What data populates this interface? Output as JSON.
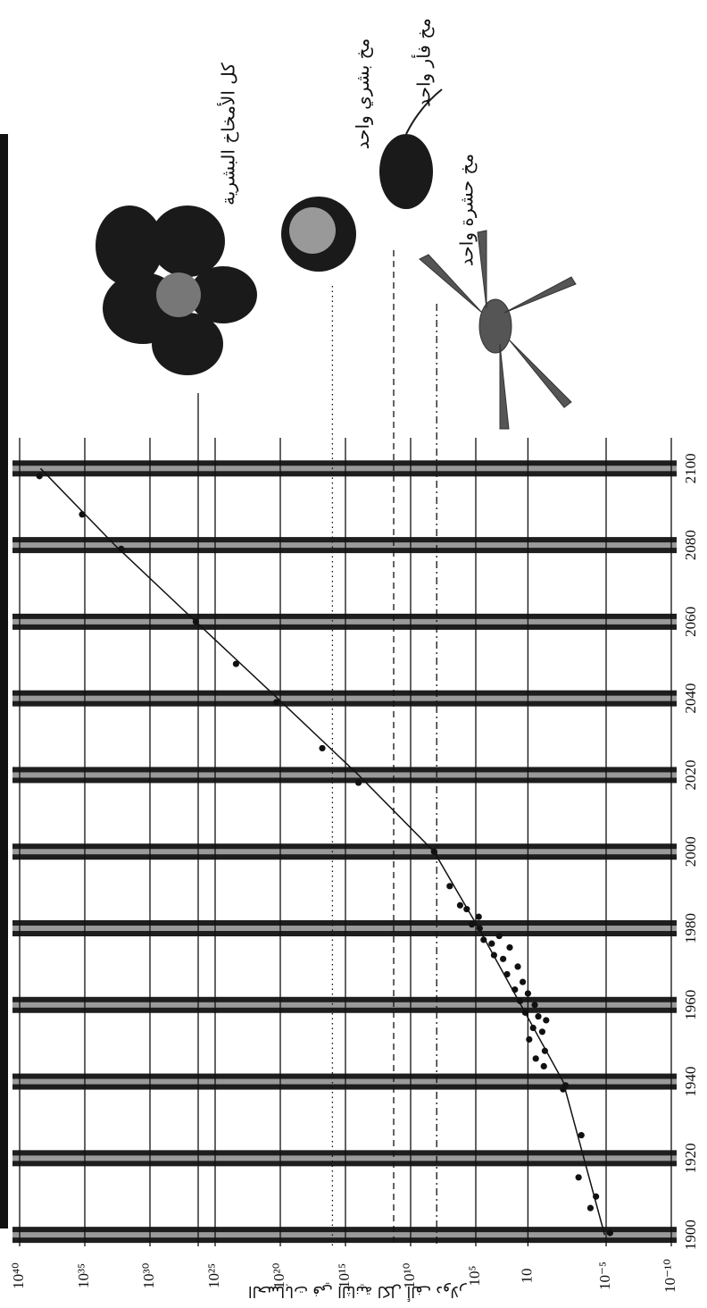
{
  "chart_data": {
    "type": "scatter",
    "ylabel": "الحسابات في الثانية لكل ألف دولار",
    "log_scale": true,
    "xlim": [
      1897,
      2108
    ],
    "xticks": [
      1900,
      1920,
      1940,
      1960,
      1980,
      2000,
      2020,
      2040,
      2060,
      2080,
      2100
    ],
    "ylim": [
      1e-10,
      1e+40
    ],
    "yticks": [
      {
        "value": 1e-10,
        "label": "10⁻¹⁰"
      },
      {
        "value": 1e-05,
        "label": "10⁻⁵"
      },
      10,
      {
        "value": 100000,
        "label": "10⁵"
      },
      {
        "value": 10000000000.0,
        "label": "10¹⁰"
      },
      {
        "value": 1000000000000000.0,
        "label": "10¹⁵"
      },
      {
        "value": 1e+20,
        "label": "10²⁰"
      },
      {
        "value": 1e+25,
        "label": "10²⁵"
      },
      {
        "value": 1e+30,
        "label": "10³⁰"
      },
      {
        "value": 1e+35,
        "label": "10³⁵"
      },
      {
        "value": 1e+40,
        "label": "10⁴⁰"
      }
    ],
    "series": [
      {
        "type": "scatter",
        "color": "#111111",
        "x": [
          1900.5,
          1907,
          1910,
          1915,
          1926,
          1938,
          1939,
          1944,
          1946,
          1948,
          1951,
          1953,
          1954,
          1956,
          1957,
          1958,
          1960,
          1961,
          1963,
          1964,
          1966,
          1968,
          1970,
          1972,
          1973,
          1975,
          1976,
          1977,
          1978,
          1980,
          1981,
          1983,
          1985,
          1986,
          1991,
          2000,
          2018,
          2027,
          2039,
          2049,
          2060,
          2079,
          2088,
          2098
        ],
        "values": [
          5e-06,
          0.00016,
          6e-05,
          0.0013,
          0.0008,
          0.02,
          0.013,
          0.6,
          2.5,
          0.5,
          8,
          0.8,
          4,
          0.4,
          1.6,
          16,
          3,
          40,
          10,
          100,
          25,
          400,
          60,
          800,
          4000,
          250,
          6000,
          25000,
          1600,
          50000,
          200000,
          60000,
          500000,
          1600000,
          10000000.0,
          160000000.0,
          100000000000000.0,
          6e+16,
          2e+20,
          2.5e+23,
          3e+26,
          1.6e+32,
          1.6e+35,
          3e+38
        ]
      },
      {
        "type": "line",
        "color": "#111111",
        "x": [
          1900,
          1940,
          1980,
          2000,
          2020,
          2040,
          2060,
          2080,
          2100
        ],
        "values": [
          1.3e-05,
          0.02,
          60000,
          160000000.0,
          100000000000000.0,
          1.6e+20,
          3e+26,
          5e+32,
          2.5e+38
        ]
      }
    ],
    "reference_lines": [
      {
        "label": "كل الأمخاخ البشرية",
        "value": 2e+26,
        "style": "solid"
      },
      {
        "label": "مخ بشري واحد",
        "value": 1e+16,
        "style": "dotted"
      },
      {
        "label": "مخ فأر واحد",
        "value": 200000000000.0,
        "style": "dashed"
      },
      {
        "label": "مخ حشرة واحد",
        "value": 100000000.0,
        "style": "dashdot"
      }
    ]
  }
}
